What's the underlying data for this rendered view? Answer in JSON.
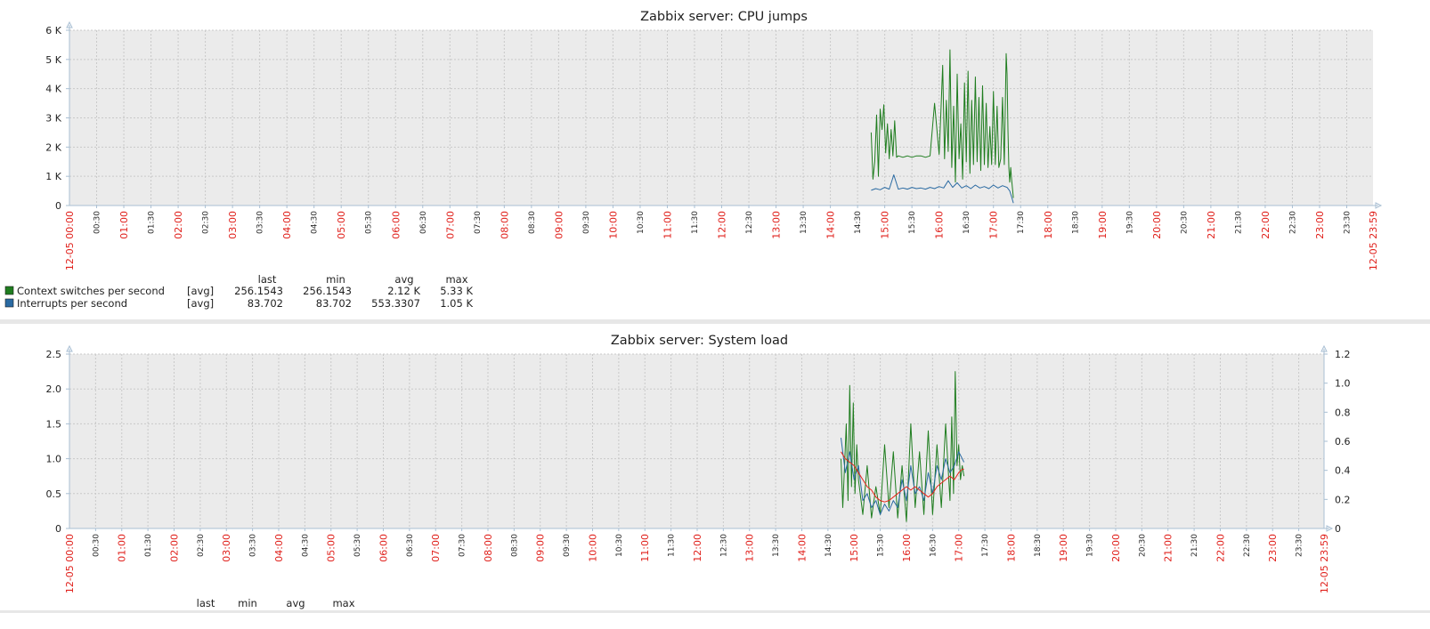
{
  "colors": {
    "plot_background": "#ebebeb",
    "grid": "#c9c9c9",
    "axis": "#a9bfd3",
    "major_tick_label": "#e0201b",
    "minor_tick_label": "#2b2b2b",
    "separator": "#e7e7e7",
    "context_switches": "#1f7d1f",
    "interrupts": "#2a6aa2",
    "system_load_1": "#1f7d1f",
    "system_load_2": "#2a6aa2",
    "system_load_3": "#e8241a"
  },
  "chart_data": [
    {
      "type": "line",
      "title": "Zabbix server: CPU jumps",
      "x_start_label": "12-05 00:00",
      "x_end_label": "12-05 23:59",
      "x_axis_unit": "minutes since 12-05 00:00",
      "x_range": [
        0,
        1439
      ],
      "x_tick_labels": [
        "00:30",
        "01:00",
        "01:30",
        "02:00",
        "02:30",
        "03:00",
        "03:30",
        "04:00",
        "04:30",
        "05:00",
        "05:30",
        "06:00",
        "06:30",
        "07:00",
        "07:30",
        "08:00",
        "08:30",
        "09:00",
        "09:30",
        "10:00",
        "10:30",
        "11:00",
        "11:30",
        "12:00",
        "12:30",
        "13:00",
        "13:30",
        "14:00",
        "14:30",
        "15:00",
        "15:30",
        "16:00",
        "16:30",
        "17:00",
        "17:30",
        "18:00",
        "18:30",
        "19:00",
        "19:30",
        "20:00",
        "20:30",
        "21:00",
        "21:30",
        "22:00",
        "22:30",
        "23:00",
        "23:30"
      ],
      "y_range": [
        0,
        6000
      ],
      "y_tick_labels": [
        "0",
        "1 K",
        "2 K",
        "3 K",
        "4 K",
        "5 K",
        "6 K"
      ],
      "grid": true,
      "legend_header": {
        "last": "last",
        "min": "min",
        "avg": "avg",
        "max": "max"
      },
      "series": [
        {
          "name": "Context switches per second",
          "func": "[avg]",
          "last": "256.1543",
          "min": "256.1543",
          "avg": "2.12 K",
          "max": "5.33 K",
          "x": [
            885,
            887,
            889,
            891,
            893,
            895,
            897,
            899,
            901,
            903,
            905,
            907,
            909,
            911,
            913,
            915,
            920,
            925,
            930,
            935,
            940,
            945,
            950,
            955,
            960,
            962,
            964,
            966,
            968,
            970,
            972,
            974,
            976,
            978,
            980,
            982,
            984,
            986,
            988,
            990,
            992,
            994,
            996,
            998,
            1000,
            1002,
            1004,
            1006,
            1008,
            1010,
            1012,
            1014,
            1016,
            1018,
            1020,
            1022,
            1024,
            1026,
            1028,
            1030,
            1032,
            1034,
            1035,
            1036,
            1037,
            1038,
            1039,
            1040,
            1042
          ],
          "y": [
            2500,
            900,
            1500,
            3100,
            1000,
            3300,
            2600,
            3450,
            1800,
            2800,
            1600,
            2600,
            1700,
            2900,
            1650,
            1700,
            1650,
            1700,
            1650,
            1700,
            1700,
            1650,
            1700,
            3500,
            1750,
            3200,
            4800,
            1600,
            3600,
            1850,
            5330,
            1300,
            3400,
            800,
            4500,
            1600,
            2800,
            900,
            4200,
            1500,
            4600,
            1100,
            3600,
            1400,
            4400,
            1500,
            3700,
            1200,
            4100,
            1400,
            3500,
            1300,
            2700,
            1400,
            3900,
            1400,
            3400,
            1300,
            1600,
            3700,
            1400,
            5200,
            4500,
            2600,
            1300,
            800,
            1300,
            900,
            256
          ]
        },
        {
          "name": "Interrupts per second",
          "func": "[avg]",
          "last": "83.702",
          "min": "83.702",
          "avg": "553.3307",
          "max": "1.05 K",
          "x": [
            885,
            890,
            895,
            900,
            905,
            910,
            915,
            920,
            925,
            930,
            935,
            940,
            945,
            950,
            955,
            960,
            965,
            970,
            975,
            980,
            985,
            990,
            995,
            1000,
            1005,
            1010,
            1015,
            1020,
            1025,
            1030,
            1035,
            1038,
            1040,
            1042
          ],
          "y": [
            520,
            580,
            540,
            620,
            560,
            1050,
            560,
            600,
            560,
            620,
            580,
            600,
            560,
            620,
            580,
            650,
            600,
            850,
            620,
            780,
            600,
            680,
            580,
            700,
            600,
            650,
            580,
            700,
            600,
            680,
            620,
            500,
            300,
            84
          ]
        }
      ]
    },
    {
      "type": "line",
      "title": "Zabbix server: System load",
      "x_start_label": "12-05 00:00",
      "x_end_label": "12-05 23:59",
      "x_axis_unit": "minutes since 12-05 00:00",
      "x_range": [
        0,
        1439
      ],
      "x_tick_labels": [
        "00:30",
        "01:00",
        "01:30",
        "02:00",
        "02:30",
        "03:00",
        "03:30",
        "04:00",
        "04:30",
        "05:00",
        "05:30",
        "06:00",
        "06:30",
        "07:00",
        "07:30",
        "08:00",
        "08:30",
        "09:00",
        "09:30",
        "10:00",
        "10:30",
        "11:00",
        "11:30",
        "12:00",
        "12:30",
        "13:00",
        "13:30",
        "14:00",
        "14:30",
        "15:00",
        "15:30",
        "16:00",
        "16:30",
        "17:00",
        "17:30",
        "18:00",
        "18:30",
        "19:00",
        "19:30",
        "20:00",
        "20:30",
        "21:00",
        "21:30",
        "22:00",
        "22:30",
        "23:00",
        "23:30"
      ],
      "y_range": [
        0,
        2.5
      ],
      "y_tick_labels": [
        "0",
        "0.5",
        "1.0",
        "1.5",
        "2.0",
        "2.5"
      ],
      "y2_range": [
        0,
        1.2
      ],
      "y2_tick_labels": [
        "0",
        "0.2",
        "0.4",
        "0.6",
        "0.8",
        "1.0",
        "1.2"
      ],
      "grid": true,
      "legend_header": {
        "last": "last",
        "min": "min",
        "avg": "avg",
        "max": "max"
      },
      "series": [
        {
          "x": [
            885,
            887,
            889,
            891,
            893,
            895,
            897,
            899,
            901,
            903,
            905,
            910,
            915,
            920,
            925,
            930,
            935,
            940,
            945,
            950,
            955,
            960,
            965,
            970,
            975,
            980,
            985,
            990,
            995,
            1000,
            1005,
            1010,
            1012,
            1014,
            1016,
            1018,
            1020,
            1022,
            1024,
            1026
          ],
          "y": [
            1.0,
            0.3,
            0.9,
            1.5,
            0.4,
            2.05,
            0.6,
            1.8,
            0.5,
            1.2,
            0.7,
            0.2,
            0.9,
            0.15,
            0.6,
            0.2,
            1.2,
            0.3,
            1.1,
            0.15,
            0.9,
            0.1,
            1.5,
            0.3,
            1.1,
            0.2,
            1.4,
            0.2,
            1.2,
            0.3,
            1.5,
            0.4,
            1.6,
            0.5,
            2.25,
            0.9,
            1.2,
            0.7,
            0.9,
            0.75
          ]
        },
        {
          "x": [
            885,
            890,
            895,
            900,
            905,
            910,
            915,
            920,
            925,
            930,
            935,
            940,
            945,
            950,
            955,
            960,
            965,
            970,
            975,
            980,
            985,
            990,
            995,
            1000,
            1005,
            1010,
            1015,
            1020,
            1024,
            1026
          ],
          "y": [
            1.3,
            0.8,
            1.1,
            0.7,
            0.9,
            0.4,
            0.5,
            0.3,
            0.4,
            0.2,
            0.35,
            0.25,
            0.4,
            0.3,
            0.7,
            0.4,
            0.9,
            0.5,
            0.6,
            0.4,
            0.8,
            0.5,
            0.9,
            0.7,
            1.0,
            0.8,
            0.9,
            1.1,
            1.0,
            0.95
          ]
        },
        {
          "x": [
            885,
            890,
            895,
            900,
            905,
            910,
            915,
            920,
            925,
            930,
            935,
            940,
            945,
            950,
            955,
            960,
            965,
            970,
            975,
            980,
            985,
            990,
            995,
            1000,
            1005,
            1010,
            1015,
            1020,
            1024,
            1026
          ],
          "y": [
            1.1,
            1.0,
            0.95,
            0.9,
            0.8,
            0.7,
            0.6,
            0.55,
            0.45,
            0.4,
            0.38,
            0.4,
            0.45,
            0.5,
            0.55,
            0.6,
            0.55,
            0.6,
            0.55,
            0.5,
            0.45,
            0.5,
            0.6,
            0.65,
            0.7,
            0.75,
            0.7,
            0.8,
            0.85,
            0.85
          ]
        }
      ]
    }
  ]
}
